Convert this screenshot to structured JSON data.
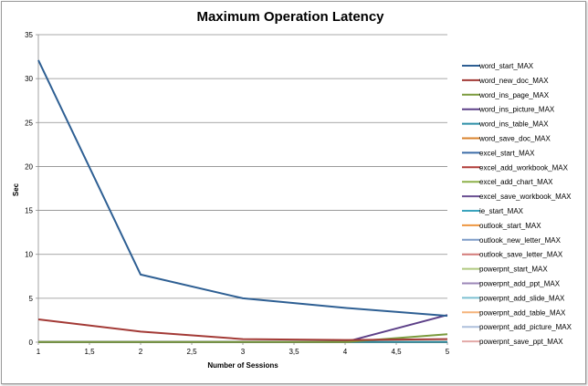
{
  "chart_data": {
    "type": "line",
    "title": "Maximum Operation Latency",
    "xlabel": "Number of Sessions",
    "ylabel": "Sec",
    "xlim": [
      1,
      5
    ],
    "ylim": [
      0,
      35
    ],
    "x_ticks": [
      "1",
      "1,5",
      "2",
      "2,5",
      "3",
      "3,5",
      "4",
      "4,5",
      "5"
    ],
    "x_tick_values": [
      1,
      1.5,
      2,
      2.5,
      3,
      3.5,
      4,
      4.5,
      5
    ],
    "y_ticks": [
      0,
      5,
      10,
      15,
      20,
      25,
      30,
      35
    ],
    "grid": "horizontal",
    "legend_position": "right",
    "x": [
      1,
      2,
      3,
      4,
      5
    ],
    "series": [
      {
        "name": "word_start_MAX",
        "color": "#2e5f93",
        "values": [
          32.1,
          7.7,
          5.0,
          3.9,
          3.0
        ]
      },
      {
        "name": "word_new_doc_MAX",
        "color": "#a33a36",
        "values": [
          2.6,
          1.2,
          0.35,
          0.25,
          0.35
        ]
      },
      {
        "name": "word_ins_page_MAX",
        "color": "#7a9a3c",
        "values": [
          0.02,
          0.02,
          0.02,
          0.02,
          0.9
        ]
      },
      {
        "name": "word_ins_picture_MAX",
        "color": "#5d4088",
        "values": [
          0.02,
          0.02,
          0.02,
          0.02,
          3.1
        ]
      },
      {
        "name": "word_ins_table_MAX",
        "color": "#2c8fa7",
        "values": [
          0.02,
          0.02,
          0.02,
          0.02,
          0.02
        ]
      },
      {
        "name": "word_save_doc_MAX",
        "color": "#d9832e",
        "values": [
          0.02,
          0.02,
          0.02,
          0.02,
          0.02
        ]
      },
      {
        "name": "excel_start_MAX",
        "color": "#3c6ca8",
        "values": [
          0.02,
          0.02,
          0.02,
          0.02,
          0.02
        ]
      },
      {
        "name": "excel_add_workbook_MAX",
        "color": "#b03c38",
        "values": [
          0.02,
          0.02,
          0.02,
          0.02,
          0.02
        ]
      },
      {
        "name": "excel_add_chart_MAX",
        "color": "#8db14a",
        "values": [
          0.02,
          0.02,
          0.02,
          0.02,
          0.02
        ]
      },
      {
        "name": "excel_save_workbook_MAX",
        "color": "#6a4f92",
        "values": [
          0.02,
          0.02,
          0.02,
          0.02,
          0.02
        ]
      },
      {
        "name": "ie_start_MAX",
        "color": "#3aa3bd",
        "values": [
          0.02,
          0.02,
          0.02,
          0.02,
          0.02
        ]
      },
      {
        "name": "outlook_start_MAX",
        "color": "#ee9640",
        "values": [
          0.02,
          0.02,
          0.02,
          0.02,
          0.02
        ]
      },
      {
        "name": "outlook_new_letter_MAX",
        "color": "#7d9cc8",
        "values": [
          0.02,
          0.02,
          0.02,
          0.02,
          0.02
        ]
      },
      {
        "name": "outlook_save_letter_MAX",
        "color": "#d37a78",
        "values": [
          0.02,
          0.02,
          0.02,
          0.02,
          0.02
        ]
      },
      {
        "name": "powerpnt_start_MAX",
        "color": "#b0c980",
        "values": [
          0.02,
          0.02,
          0.02,
          0.02,
          0.02
        ]
      },
      {
        "name": "powerpnt_add_ppt_MAX",
        "color": "#9c87b8",
        "values": [
          0.02,
          0.02,
          0.02,
          0.02,
          0.02
        ]
      },
      {
        "name": "powerpnt_add_slide_MAX",
        "color": "#7ec0d2",
        "values": [
          0.02,
          0.02,
          0.02,
          0.02,
          0.02
        ]
      },
      {
        "name": "powerpnt_add_table_MAX",
        "color": "#f5b47a",
        "values": [
          0.02,
          0.02,
          0.02,
          0.02,
          0.02
        ]
      },
      {
        "name": "powerpnt_add_picture_MAX",
        "color": "#aebfdc",
        "values": [
          0.02,
          0.02,
          0.02,
          0.02,
          0.02
        ]
      },
      {
        "name": "powerpnt_save_ppt_MAX",
        "color": "#e3a9a7",
        "values": [
          0.02,
          0.02,
          0.02,
          0.02,
          0.02
        ]
      }
    ]
  }
}
